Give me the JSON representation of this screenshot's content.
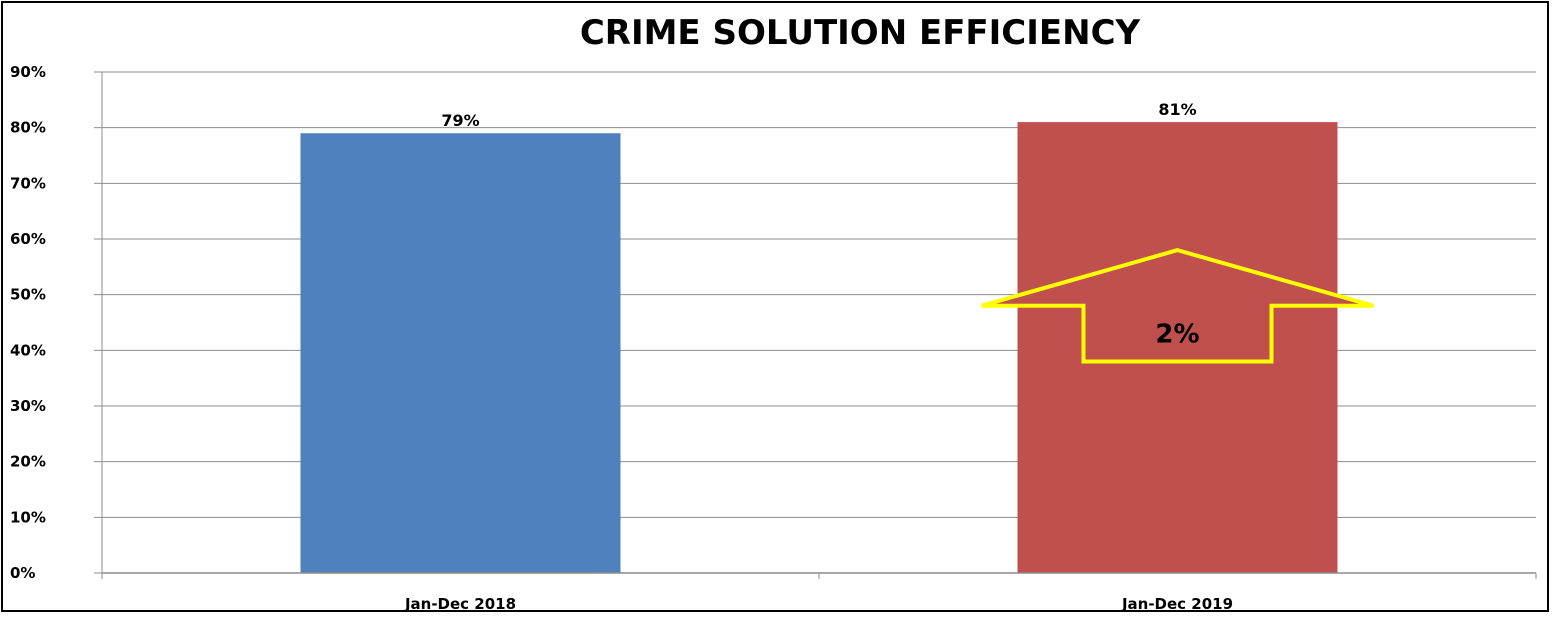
{
  "chart_data": {
    "type": "bar",
    "title": "CRIME SOLUTION EFFICIENCY",
    "xlabel": "",
    "ylabel": "",
    "categories": [
      "Jan-Dec 2018",
      "Jan-Dec 2019"
    ],
    "values": [
      79,
      81
    ],
    "value_labels": [
      "79%",
      "81%"
    ],
    "colors": [
      "#4f81bd",
      "#c0504d"
    ],
    "ylim": [
      0,
      90
    ],
    "yticks": [
      "0%",
      "10%",
      "20%",
      "30%",
      "40%",
      "50%",
      "60%",
      "70%",
      "80%",
      "90%"
    ],
    "grid": true,
    "legend": "none",
    "annotation": {
      "text": "2%",
      "shape": "up-arrow",
      "outline_color": "#ffff00"
    }
  }
}
